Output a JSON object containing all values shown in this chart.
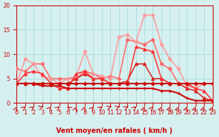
{
  "bg_color": "#d6f0f0",
  "grid_color": "#aadddd",
  "xlabel": "Vent moyen/en rafales ( km/h )",
  "xlim": [
    0,
    23
  ],
  "ylim": [
    0,
    20
  ],
  "yticks": [
    0,
    5,
    10,
    15,
    20
  ],
  "xticks": [
    0,
    1,
    2,
    3,
    4,
    5,
    6,
    7,
    8,
    9,
    10,
    11,
    12,
    13,
    14,
    15,
    16,
    17,
    18,
    19,
    20,
    21,
    22,
    23
  ],
  "series": [
    {
      "x": [
        0,
        1,
        2,
        3,
        4,
        5,
        6,
        7,
        8,
        9,
        10,
        11,
        12,
        13,
        14,
        15,
        16,
        17,
        18,
        19,
        20,
        21,
        22,
        23
      ],
      "y": [
        4,
        4,
        4,
        4,
        4,
        4,
        4,
        4,
        4,
        4,
        4,
        4,
        4,
        4,
        4,
        4,
        4,
        4,
        4,
        4,
        4,
        4,
        4,
        4
      ],
      "color": "#cc0000",
      "lw": 1.5,
      "marker": "D",
      "ms": 2.5,
      "zorder": 5
    },
    {
      "x": [
        0,
        1,
        2,
        3,
        4,
        5,
        6,
        7,
        8,
        9,
        10,
        11,
        12,
        13,
        14,
        15,
        16,
        17,
        18,
        19,
        20,
        21,
        22,
        23
      ],
      "y": [
        4,
        4,
        4,
        3.5,
        3.5,
        3.5,
        3,
        3,
        3,
        3,
        3,
        3,
        3,
        3,
        3,
        3,
        3,
        2.5,
        2.5,
        2,
        1,
        0.5,
        0.5,
        0.5
      ],
      "color": "#cc0000",
      "lw": 1.5,
      "marker": "+",
      "ms": 3,
      "zorder": 5
    },
    {
      "x": [
        0,
        1,
        2,
        3,
        4,
        5,
        6,
        7,
        8,
        9,
        10,
        11,
        12,
        13,
        14,
        15,
        16,
        17,
        18,
        19,
        20,
        21,
        22,
        23
      ],
      "y": [
        4,
        4,
        4,
        4,
        4,
        4,
        4,
        5,
        6,
        5,
        5,
        4,
        4,
        4.5,
        8,
        8,
        5,
        5,
        4,
        4,
        3,
        2.5,
        1,
        0.5
      ],
      "color": "#dd2222",
      "lw": 1.2,
      "marker": "^",
      "ms": 3,
      "zorder": 4
    },
    {
      "x": [
        0,
        1,
        2,
        3,
        4,
        5,
        6,
        7,
        8,
        9,
        10,
        11,
        12,
        13,
        14,
        15,
        16,
        17,
        18,
        19,
        20,
        21,
        22,
        23
      ],
      "y": [
        4,
        6,
        6.5,
        6,
        4,
        3,
        3,
        6,
        6.5,
        5,
        5,
        4,
        4,
        4,
        11.5,
        11,
        10.5,
        5,
        4,
        4,
        4,
        3,
        2.5,
        0.5
      ],
      "color": "#ff3333",
      "lw": 1.2,
      "marker": "^",
      "ms": 3,
      "zorder": 4
    },
    {
      "x": [
        0,
        1,
        2,
        3,
        4,
        5,
        6,
        7,
        8,
        9,
        10,
        11,
        12,
        13,
        14,
        15,
        16,
        17,
        18,
        19,
        20,
        21,
        22,
        23
      ],
      "y": [
        7,
        6.5,
        8,
        8,
        5,
        5,
        5,
        5,
        6.5,
        6,
        5,
        5.5,
        5,
        13,
        12.5,
        12,
        13,
        8,
        7,
        4,
        4,
        3,
        4,
        4
      ],
      "color": "#ff6666",
      "lw": 1.2,
      "marker": "D",
      "ms": 2.5,
      "zorder": 3
    },
    {
      "x": [
        0,
        1,
        2,
        3,
        4,
        5,
        6,
        7,
        8,
        9,
        10,
        11,
        12,
        13,
        14,
        15,
        16,
        17,
        18,
        19,
        20,
        21,
        22,
        23
      ],
      "y": [
        4,
        9,
        8,
        5.5,
        5,
        4,
        5,
        5.5,
        10.5,
        6,
        5.5,
        5,
        13.5,
        14,
        12.5,
        18,
        18,
        12,
        9,
        7,
        3.5,
        3,
        4,
        4
      ],
      "color": "#ff9999",
      "lw": 1.2,
      "marker": "D",
      "ms": 2.5,
      "zorder": 3
    }
  ],
  "arrow_color": "#cc0000",
  "title_fontsize": 7,
  "axis_fontsize": 7,
  "tick_fontsize": 6
}
